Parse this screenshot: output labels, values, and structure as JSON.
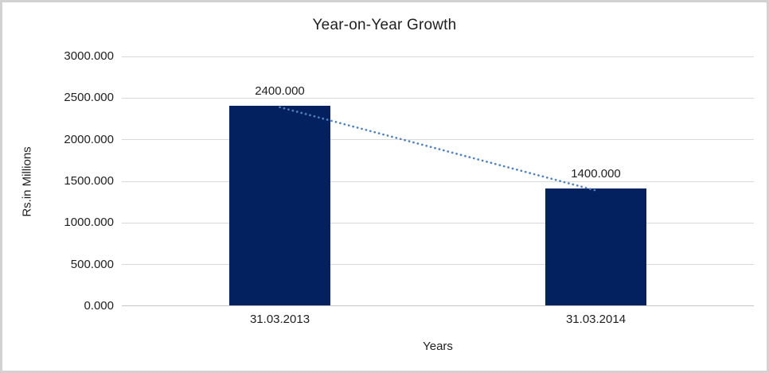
{
  "window": {
    "background": "#ffffff",
    "frame_border_color": "#d2d2d2"
  },
  "chart_data": {
    "type": "bar",
    "title": "Year-on-Year Growth",
    "xlabel": "Years",
    "ylabel": "Rs.in Millions",
    "categories": [
      "31.03.2013",
      "31.03.2014"
    ],
    "values": [
      2400,
      1400
    ],
    "value_labels": [
      "2400.000",
      "1400.000"
    ],
    "ylim": [
      0,
      3000
    ],
    "yticks": [
      0,
      500,
      1000,
      1500,
      2000,
      2500,
      3000
    ],
    "ytick_labels": [
      "0.000",
      "500.000",
      "1000.000",
      "1500.000",
      "2000.000",
      "2500.000",
      "3000.000"
    ],
    "grid": true,
    "legend": "none",
    "bar_color": "#03215F",
    "trendline": {
      "style": "dotted",
      "color": "#4F81BD",
      "from_value": 2400,
      "to_value": 1400
    },
    "gridline_color": "#d9d9d9",
    "axis_line_color": "#c6c6c6",
    "text_color": "#1f1f1f"
  }
}
